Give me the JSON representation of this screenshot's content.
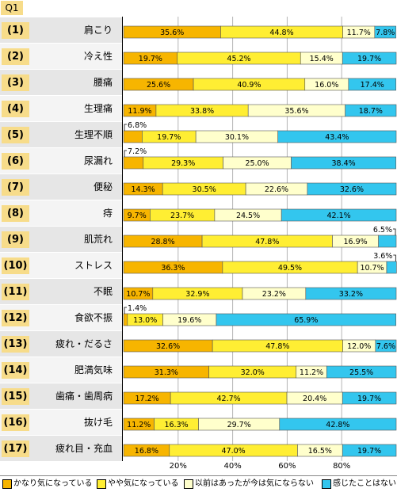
{
  "question_label": "Q1",
  "chart_data": {
    "type": "bar",
    "orientation": "horizontal",
    "stacked": true,
    "percent": true,
    "xlim": [
      0,
      100
    ],
    "x_ticks": [
      "20%",
      "40%",
      "60%",
      "80%"
    ],
    "grid": true,
    "legend_position": "bottom",
    "categories": [
      {
        "num": "(1)",
        "label": "肩こり"
      },
      {
        "num": "(2)",
        "label": "冷え性"
      },
      {
        "num": "(3)",
        "label": "腰痛"
      },
      {
        "num": "(4)",
        "label": "生理痛"
      },
      {
        "num": "(5)",
        "label": "生理不順"
      },
      {
        "num": "(6)",
        "label": "尿漏れ"
      },
      {
        "num": "(7)",
        "label": "便秘"
      },
      {
        "num": "(8)",
        "label": "痔"
      },
      {
        "num": "(9)",
        "label": "肌荒れ"
      },
      {
        "num": "(10)",
        "label": "ストレス"
      },
      {
        "num": "(11)",
        "label": "不眠"
      },
      {
        "num": "(12)",
        "label": "食欲不振"
      },
      {
        "num": "(13)",
        "label": "疲れ・だるさ"
      },
      {
        "num": "(14)",
        "label": "肥満気味"
      },
      {
        "num": "(15)",
        "label": "歯痛・歯周病"
      },
      {
        "num": "(16)",
        "label": "抜け毛"
      },
      {
        "num": "(17)",
        "label": "疲れ目・充血"
      }
    ],
    "series": [
      {
        "name": "かなり気になっている",
        "color": "#f7b500",
        "values": [
          35.6,
          19.7,
          25.6,
          11.9,
          6.8,
          7.2,
          14.3,
          9.7,
          28.8,
          36.3,
          10.7,
          1.4,
          32.6,
          31.3,
          17.2,
          11.2,
          16.8
        ],
        "labels": [
          "35.6%",
          "19.7%",
          "25.6%",
          "11.9%",
          "6.8%",
          "7.2%",
          "14.3%",
          "9.7%",
          "28.8%",
          "36.3%",
          "10.7%",
          "1.4%",
          "32.6%",
          "31.3%",
          "17.2%",
          "11.2%",
          "16.8%"
        ]
      },
      {
        "name": "やや気になっている",
        "color": "#ffee33",
        "values": [
          44.8,
          45.2,
          40.9,
          33.8,
          19.7,
          29.3,
          30.5,
          23.7,
          47.8,
          49.5,
          32.9,
          13.0,
          47.8,
          32.0,
          42.7,
          16.3,
          47.0
        ],
        "labels": [
          "44.8%",
          "45.2%",
          "40.9%",
          "33.8%",
          "19.7%",
          "29.3%",
          "30.5%",
          "23.7%",
          "47.8%",
          "49.5%",
          "32.9%",
          "13.0%",
          "47.8%",
          "32.0%",
          "42.7%",
          "16.3%",
          "47.0%"
        ]
      },
      {
        "name": "以前はあったが今は気にならない",
        "color": "#ffffcc",
        "values": [
          11.7,
          15.4,
          16.0,
          35.6,
          30.1,
          25.0,
          22.6,
          24.5,
          16.9,
          10.7,
          23.2,
          19.6,
          12.0,
          11.2,
          20.4,
          29.7,
          16.5
        ],
        "labels": [
          "11.7%",
          "15.4%",
          "16.0%",
          "35.6%",
          "30.1%",
          "25.0%",
          "22.6%",
          "24.5%",
          "16.9%",
          "10.7%",
          "23.2%",
          "19.6%",
          "12.0%",
          "11.2%",
          "20.4%",
          "29.7%",
          "16.5%"
        ]
      },
      {
        "name": "感じたことはない",
        "color": "#33c6ee",
        "values": [
          7.8,
          19.7,
          17.4,
          18.7,
          43.4,
          38.4,
          32.6,
          42.1,
          6.5,
          3.6,
          33.2,
          65.9,
          7.6,
          25.5,
          19.7,
          42.8,
          19.7
        ],
        "labels": [
          "7.8%",
          "19.7%",
          "17.4%",
          "18.7%",
          "43.4%",
          "38.4%",
          "32.6%",
          "42.1%",
          "6.5%",
          "3.6%",
          "33.2%",
          "65.9%",
          "7.6%",
          "25.5%",
          "19.7%",
          "42.8%",
          "19.7%"
        ]
      }
    ],
    "callouts": [
      {
        "row": 4,
        "series": 0,
        "side": "left"
      },
      {
        "row": 5,
        "series": 0,
        "side": "left"
      },
      {
        "row": 8,
        "series": 3,
        "side": "right"
      },
      {
        "row": 9,
        "series": 3,
        "side": "right"
      },
      {
        "row": 11,
        "series": 0,
        "side": "left"
      }
    ]
  }
}
